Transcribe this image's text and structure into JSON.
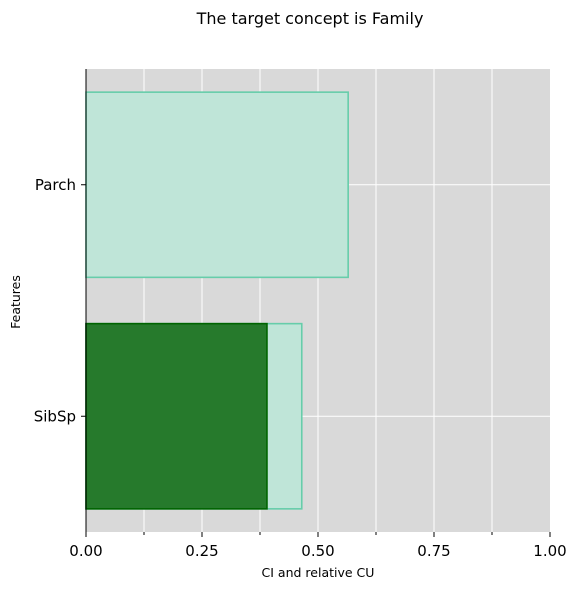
{
  "chart_data": {
    "type": "bar",
    "orientation": "horizontal",
    "title": "The target concept is Family",
    "xlabel": "CI and relative CU",
    "ylabel": "Features",
    "categories": [
      "Parch",
      "SibSp"
    ],
    "series": [
      {
        "values": [
          0.565,
          0.465
        ],
        "color": "#bfe5d8",
        "edge_color": "#66cdaa"
      },
      {
        "values": [
          0.0,
          0.39
        ],
        "color": "#267a2c",
        "edge_color": "#006400"
      }
    ],
    "xlim": [
      0,
      1
    ],
    "x_ticks": [
      0,
      0.25,
      0.5,
      0.75,
      1
    ],
    "x_tick_labels": [
      "0.00",
      "0.25",
      "0.50",
      "0.75",
      "1.00"
    ],
    "x_minor_ticks": [
      0.125,
      0.375,
      0.625,
      0.875
    ],
    "grid": true,
    "background_color": "#d9d9d9"
  }
}
